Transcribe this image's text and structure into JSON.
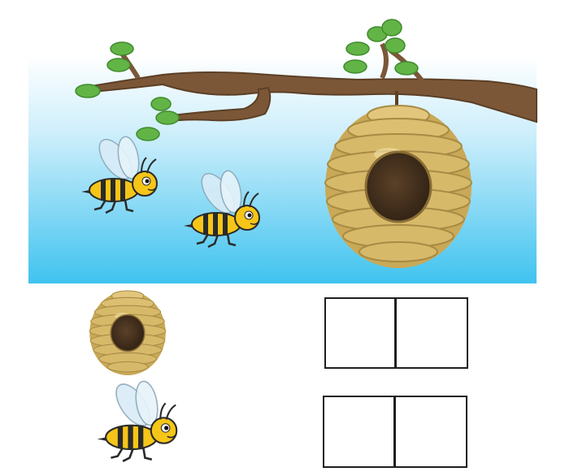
{
  "scene": {
    "sky_top_color": "#ffffff",
    "sky_bottom_color": "#3fc3ef",
    "branch_color": "#7b5738",
    "leaf_color": "#62b446",
    "hive_color": "#d7b96a",
    "hive_shadow_color": "#a78b44",
    "hive_hole_color": "#4a341e",
    "bee_body_color": "#f5c518",
    "bee_stripe_color": "#2a2a2a",
    "bee_wing_color": "#d9ecf7"
  },
  "counting_rows": [
    {
      "item": "beehive-icon",
      "boxes": 2
    },
    {
      "item": "bee-icon",
      "boxes": 2
    }
  ]
}
